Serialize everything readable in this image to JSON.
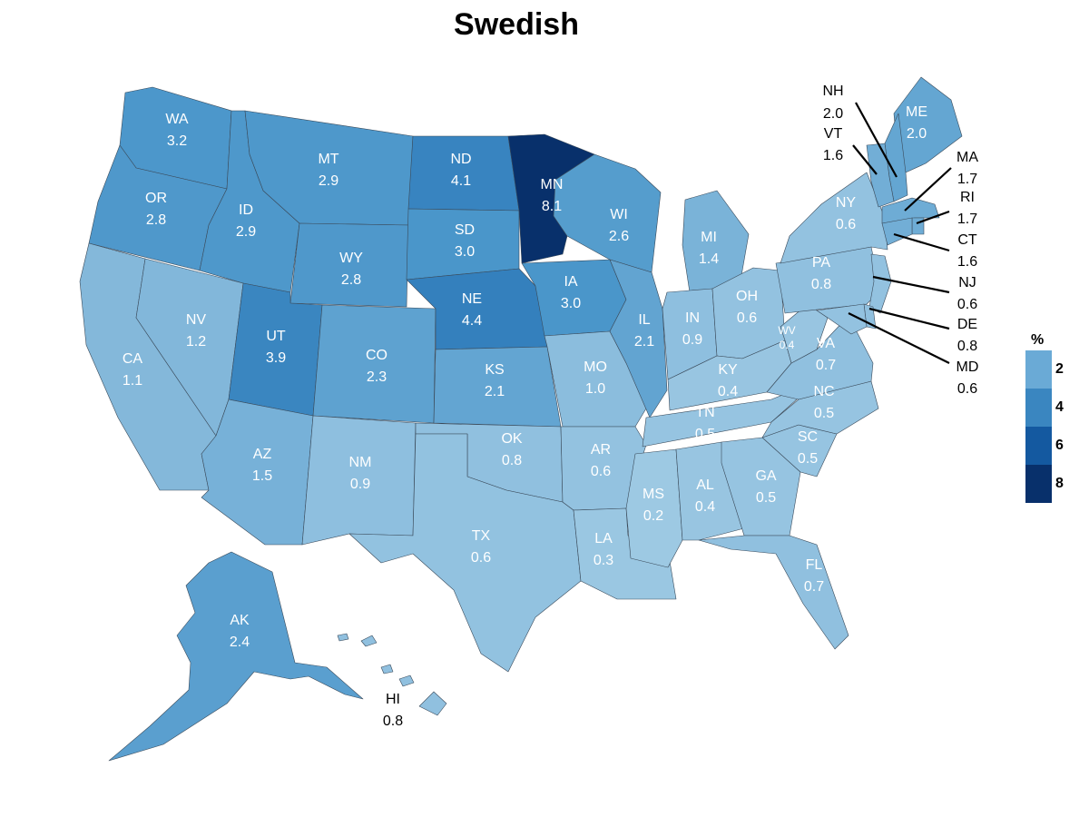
{
  "title": "Swedish",
  "legend": {
    "title": "%",
    "steps": [
      {
        "label": "2",
        "color": "#6aaad6"
      },
      {
        "label": "4",
        "color": "#3a86c0"
      },
      {
        "label": "6",
        "color": "#1459a0"
      },
      {
        "label": "8",
        "color": "#08306b"
      }
    ]
  },
  "colors": {
    "state_border": "#3a4a5a",
    "inside_label": "#ffffff",
    "outside_label": "#000000"
  },
  "states": [
    {
      "abbr": "WA",
      "value": "3.2",
      "color": "#4c97cb"
    },
    {
      "abbr": "OR",
      "value": "2.8",
      "color": "#4f98cb"
    },
    {
      "abbr": "CA",
      "value": "1.1",
      "color": "#84b8da"
    },
    {
      "abbr": "NV",
      "value": "1.2",
      "color": "#82b7da"
    },
    {
      "abbr": "ID",
      "value": "2.9",
      "color": "#4e98cb"
    },
    {
      "abbr": "MT",
      "value": "2.9",
      "color": "#4e98cb"
    },
    {
      "abbr": "WY",
      "value": "2.8",
      "color": "#4f98cb"
    },
    {
      "abbr": "UT",
      "value": "3.9",
      "color": "#3a86c0"
    },
    {
      "abbr": "CO",
      "value": "2.3",
      "color": "#5ea2d0"
    },
    {
      "abbr": "AZ",
      "value": "1.5",
      "color": "#77b1d8"
    },
    {
      "abbr": "NM",
      "value": "0.9",
      "color": "#8ebfdf"
    },
    {
      "abbr": "ND",
      "value": "4.1",
      "color": "#3884c0"
    },
    {
      "abbr": "SD",
      "value": "3.0",
      "color": "#4a96ca"
    },
    {
      "abbr": "NE",
      "value": "4.4",
      "color": "#3480bd"
    },
    {
      "abbr": "KS",
      "value": "2.1",
      "color": "#63a5d2"
    },
    {
      "abbr": "OK",
      "value": "0.8",
      "color": "#90c0df"
    },
    {
      "abbr": "TX",
      "value": "0.6",
      "color": "#92c2e0"
    },
    {
      "abbr": "MN",
      "value": "8.1",
      "color": "#08306b"
    },
    {
      "abbr": "IA",
      "value": "3.0",
      "color": "#4a96ca"
    },
    {
      "abbr": "MO",
      "value": "1.0",
      "color": "#8bbddd"
    },
    {
      "abbr": "AR",
      "value": "0.6",
      "color": "#93c2e0"
    },
    {
      "abbr": "LA",
      "value": "0.3",
      "color": "#9ac7e2"
    },
    {
      "abbr": "WI",
      "value": "2.6",
      "color": "#559dcd"
    },
    {
      "abbr": "IL",
      "value": "2.1",
      "color": "#62a4d1"
    },
    {
      "abbr": "MI",
      "value": "1.4",
      "color": "#7ab3d8"
    },
    {
      "abbr": "IN",
      "value": "0.9",
      "color": "#8ebfdf"
    },
    {
      "abbr": "OH",
      "value": "0.6",
      "color": "#93c2e0"
    },
    {
      "abbr": "KY",
      "value": "0.4",
      "color": "#98c5e1"
    },
    {
      "abbr": "TN",
      "value": "0.5",
      "color": "#96c4e1"
    },
    {
      "abbr": "MS",
      "value": "0.2",
      "color": "#9dc9e3"
    },
    {
      "abbr": "AL",
      "value": "0.4",
      "color": "#98c5e1"
    },
    {
      "abbr": "GA",
      "value": "0.5",
      "color": "#96c4e1"
    },
    {
      "abbr": "FL",
      "value": "0.7",
      "color": "#90c0df"
    },
    {
      "abbr": "SC",
      "value": "0.5",
      "color": "#96c4e1"
    },
    {
      "abbr": "NC",
      "value": "0.5",
      "color": "#96c4e1"
    },
    {
      "abbr": "VA",
      "value": "0.7",
      "color": "#90c0df"
    },
    {
      "abbr": "WV",
      "value": "0.4",
      "color": "#98c5e1"
    },
    {
      "abbr": "PA",
      "value": "0.8",
      "color": "#90c0df"
    },
    {
      "abbr": "NY",
      "value": "0.6",
      "color": "#93c2e0"
    },
    {
      "abbr": "ME",
      "value": "2.0",
      "color": "#64a6d2"
    },
    {
      "abbr": "NH",
      "value": "2.0",
      "color": "#64a6d2"
    },
    {
      "abbr": "VT",
      "value": "1.6",
      "color": "#72aed6"
    },
    {
      "abbr": "MA",
      "value": "1.7",
      "color": "#6eacd5"
    },
    {
      "abbr": "RI",
      "value": "1.7",
      "color": "#6eacd5"
    },
    {
      "abbr": "CT",
      "value": "1.6",
      "color": "#72aed6"
    },
    {
      "abbr": "NJ",
      "value": "0.6",
      "color": "#93c2e0"
    },
    {
      "abbr": "DE",
      "value": "0.8",
      "color": "#90c0df"
    },
    {
      "abbr": "MD",
      "value": "0.6",
      "color": "#93c2e0"
    },
    {
      "abbr": "AK",
      "value": "2.4",
      "color": "#5a9fcf"
    },
    {
      "abbr": "HI",
      "value": "0.8",
      "color": "#90c0df"
    }
  ]
}
